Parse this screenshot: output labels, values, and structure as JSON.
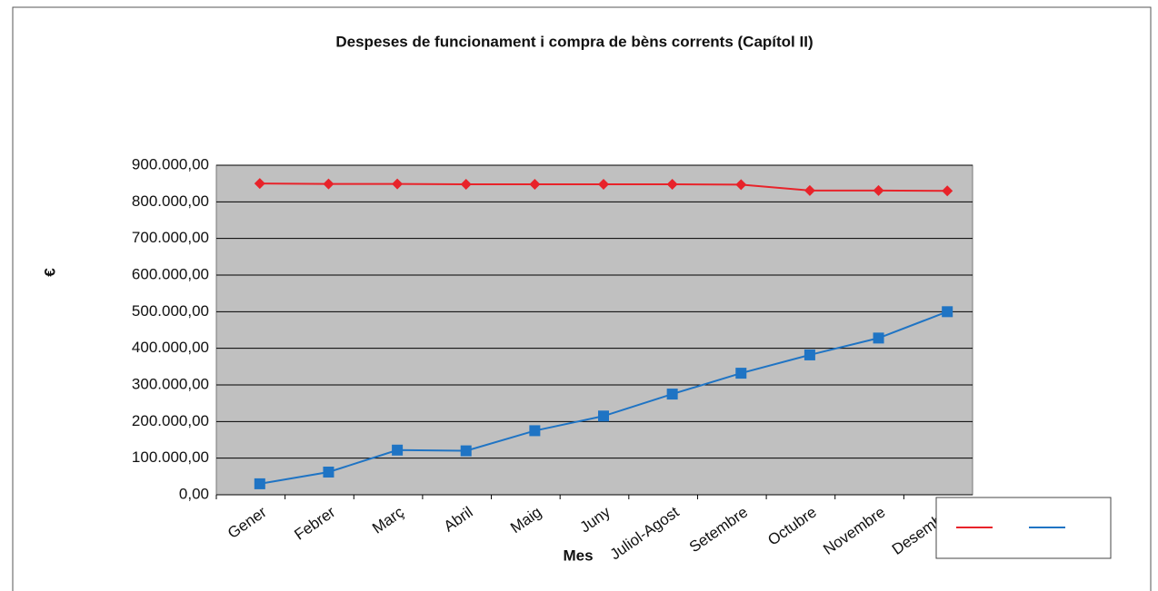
{
  "chart_data": {
    "type": "line",
    "title": "Despeses de funcionament i compra de bèns corrents (Capítol II)",
    "x_label": "Mes",
    "y_label": "€",
    "categories": [
      "Gener",
      "Febrer",
      "Març",
      "Abril",
      "Maig",
      "Juny",
      "Juliol-Agost",
      "Setembre",
      "Octubre",
      "Novembre",
      "Desembre"
    ],
    "series": [
      {
        "color": "#e8232a",
        "marker": "diamond",
        "values": [
          850000,
          849000,
          849000,
          848000,
          848000,
          848000,
          848000,
          847000,
          831000,
          831000,
          830000
        ]
      },
      {
        "color": "#1f74c4",
        "marker": "square",
        "values": [
          30000,
          62000,
          122000,
          120000,
          175000,
          215000,
          275000,
          332000,
          382000,
          428000,
          500000
        ]
      }
    ],
    "ylim": [
      0,
      900000
    ],
    "yticks": [
      {
        "value": 0,
        "label": "0,00"
      },
      {
        "value": 100000,
        "label": "100.000,00"
      },
      {
        "value": 200000,
        "label": "200.000,00"
      },
      {
        "value": 300000,
        "label": "300.000,00"
      },
      {
        "value": 400000,
        "label": "400.000,00"
      },
      {
        "value": 500000,
        "label": "500.000,00"
      },
      {
        "value": 600000,
        "label": "600.000,00"
      },
      {
        "value": 700000,
        "label": "700.000,00"
      },
      {
        "value": 800000,
        "label": "800.000,00"
      },
      {
        "value": 900000,
        "label": "900.000,00"
      }
    ],
    "grid": true,
    "plot_background": "#c0c0c0",
    "legend": "lower right"
  }
}
